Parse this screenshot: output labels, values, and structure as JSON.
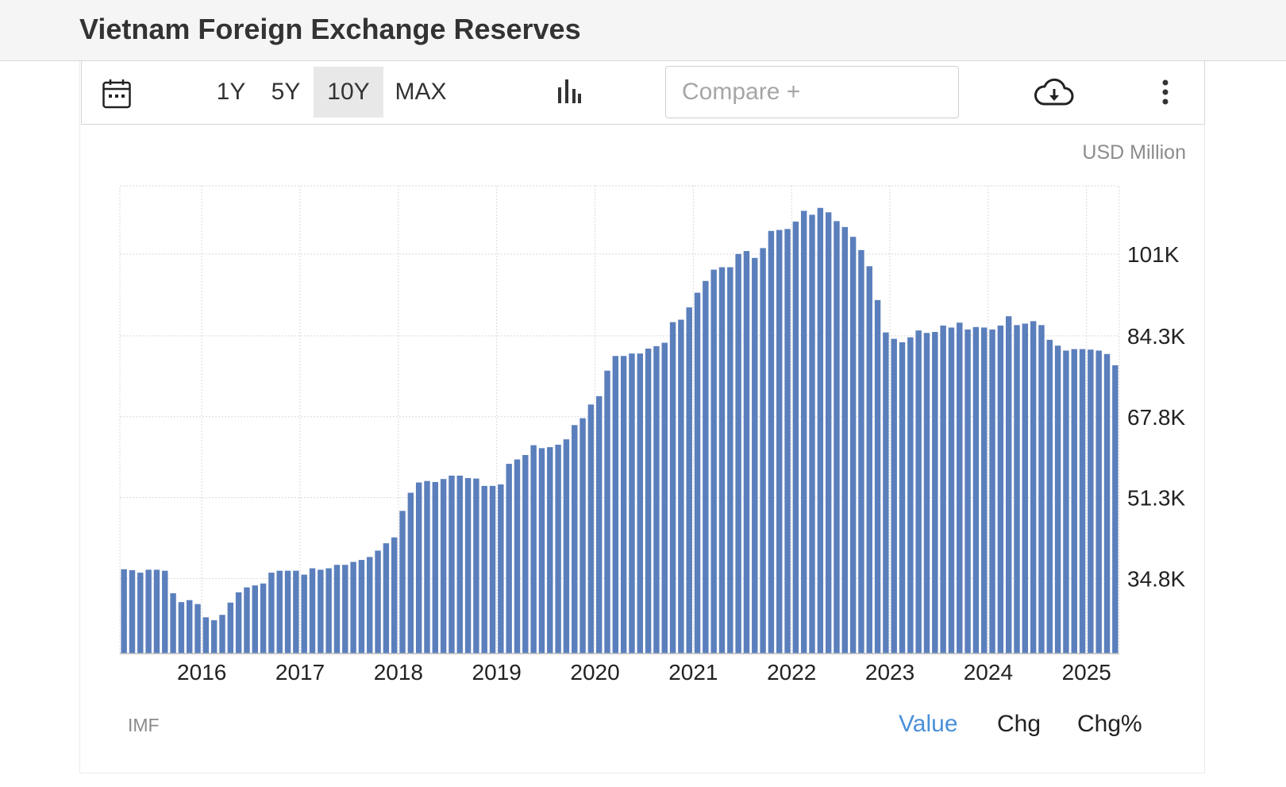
{
  "title": "Vietnam Foreign Exchange Reserves",
  "toolbar": {
    "calendar_icon": "calendar-icon",
    "ranges": [
      {
        "label": "1Y",
        "active": false
      },
      {
        "label": "5Y",
        "active": false
      },
      {
        "label": "10Y",
        "active": true
      },
      {
        "label": "MAX",
        "active": false
      }
    ],
    "chart_type_icon": "bar-chart-icon",
    "compare_placeholder": "Compare +",
    "download_icon": "cloud-download-icon",
    "more_icon": "vertical-dots-icon"
  },
  "unit": "USD Million",
  "source": "IMF",
  "view_tabs": [
    {
      "label": "Value",
      "active": true
    },
    {
      "label": "Chg",
      "active": false
    },
    {
      "label": "Chg%",
      "active": false
    }
  ],
  "colors": {
    "bar": "#5b7fbc",
    "active_tab": "#4a90d9",
    "grid": "#d9d9d9"
  },
  "chart_data": {
    "type": "bar",
    "title": "Vietnam Foreign Exchange Reserves",
    "ylabel": "USD Million",
    "x_start": "2015-03",
    "frequency": "monthly",
    "x_ticks": [
      "2016",
      "2017",
      "2018",
      "2019",
      "2020",
      "2021",
      "2022",
      "2023",
      "2024",
      "2025"
    ],
    "y_ticks": [
      34.8,
      51.3,
      67.8,
      84.3,
      101
    ],
    "y_tick_labels": [
      "34.8K",
      "51.3K",
      "67.8K",
      "84.3K",
      "101K"
    ],
    "y_unit": "thousand USD Million",
    "ylim": [
      19.5,
      114.9
    ],
    "grid": true,
    "legend": "none",
    "values": [
      36.7,
      36.5,
      36.0,
      36.6,
      36.6,
      36.4,
      31.8,
      30.0,
      30.4,
      29.6,
      26.9,
      26.3,
      27.4,
      29.9,
      32.0,
      33.0,
      33.4,
      33.8,
      36.0,
      36.4,
      36.4,
      36.4,
      35.6,
      36.9,
      36.6,
      36.9,
      37.6,
      37.6,
      38.2,
      38.6,
      39.2,
      40.5,
      42.0,
      43.2,
      48.6,
      52.3,
      54.4,
      54.7,
      54.5,
      55.1,
      55.8,
      55.8,
      55.3,
      55.2,
      53.7,
      53.7,
      54.0,
      58.2,
      59.1,
      60.0,
      62.0,
      61.4,
      61.6,
      62.1,
      63.2,
      66.1,
      67.5,
      70.3,
      72.0,
      77.2,
      80.2,
      80.2,
      80.7,
      80.7,
      81.7,
      82.2,
      82.9,
      87.1,
      87.6,
      90.1,
      93.1,
      95.5,
      97.8,
      98.3,
      98.3,
      101.0,
      101.6,
      100.2,
      102.2,
      105.7,
      105.9,
      106.1,
      107.6,
      109.8,
      109.0,
      110.4,
      109.5,
      107.7,
      106.5,
      104.5,
      101.8,
      98.5,
      91.6,
      85.0,
      83.7,
      83.0,
      84.0,
      85.4,
      84.9,
      85.1,
      86.4,
      86.0,
      87.0,
      85.6,
      86.1,
      86.0,
      85.6,
      86.4,
      88.3,
      86.5,
      86.8,
      87.3,
      86.5,
      83.5,
      82.3,
      81.3,
      81.6,
      81.6,
      81.5,
      81.3,
      80.6,
      78.3
    ]
  }
}
